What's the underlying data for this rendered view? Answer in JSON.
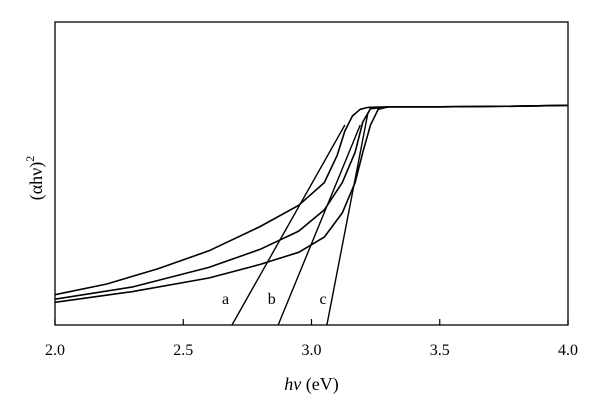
{
  "chart_data": {
    "type": "line",
    "xlabel_italic": "hν",
    "xlabel_unit": " (eV)",
    "ylabel_main": "(αhν)",
    "ylabel_sup": "2",
    "xlim": [
      2.0,
      4.0
    ],
    "ylim": [
      0,
      1
    ],
    "y_tick_labels_shown": false,
    "grid": false,
    "x_ticks": [
      {
        "value": 2.0,
        "label": "2.0"
      },
      {
        "value": 2.5,
        "label": "2.5"
      },
      {
        "value": 3.0,
        "label": "3.0"
      },
      {
        "value": 3.5,
        "label": "3.5"
      },
      {
        "value": 4.0,
        "label": "4.0"
      }
    ],
    "series": [
      {
        "name": "a",
        "x": [
          2.0,
          2.2,
          2.4,
          2.6,
          2.8,
          2.95,
          3.05,
          3.1,
          3.13,
          3.16,
          3.19,
          3.22,
          3.3,
          3.5,
          3.8,
          4.0
        ],
        "y": [
          0.1,
          0.135,
          0.185,
          0.245,
          0.325,
          0.395,
          0.47,
          0.56,
          0.64,
          0.69,
          0.712,
          0.718,
          0.72,
          0.72,
          0.722,
          0.725
        ]
      },
      {
        "name": "b",
        "x": [
          2.0,
          2.3,
          2.6,
          2.8,
          2.95,
          3.05,
          3.12,
          3.17,
          3.2,
          3.23,
          3.3,
          3.5,
          3.8,
          4.0
        ],
        "y": [
          0.085,
          0.125,
          0.19,
          0.25,
          0.31,
          0.38,
          0.47,
          0.57,
          0.67,
          0.714,
          0.72,
          0.72,
          0.722,
          0.725
        ]
      },
      {
        "name": "c",
        "x": [
          2.0,
          2.3,
          2.6,
          2.8,
          2.95,
          3.05,
          3.12,
          3.17,
          3.2,
          3.23,
          3.26,
          3.3,
          3.5,
          3.8,
          4.0
        ],
        "y": [
          0.075,
          0.11,
          0.155,
          0.2,
          0.24,
          0.29,
          0.37,
          0.47,
          0.57,
          0.66,
          0.712,
          0.72,
          0.72,
          0.722,
          0.725
        ]
      }
    ],
    "tangents": [
      {
        "label": "a",
        "x0": 2.69,
        "y0": 0.0,
        "x1": 3.13,
        "y1": 0.66
      },
      {
        "label": "b",
        "x0": 2.87,
        "y0": 0.0,
        "x1": 3.19,
        "y1": 0.66
      },
      {
        "label": "c",
        "x0": 3.06,
        "y0": 0.0,
        "x1": 3.22,
        "y1": 0.7
      }
    ],
    "curve_labels": [
      {
        "text": "a",
        "x": 2.665,
        "y": 0.07
      },
      {
        "text": "b",
        "x": 2.845,
        "y": 0.07
      },
      {
        "text": "c",
        "x": 3.045,
        "y": 0.07
      }
    ]
  }
}
